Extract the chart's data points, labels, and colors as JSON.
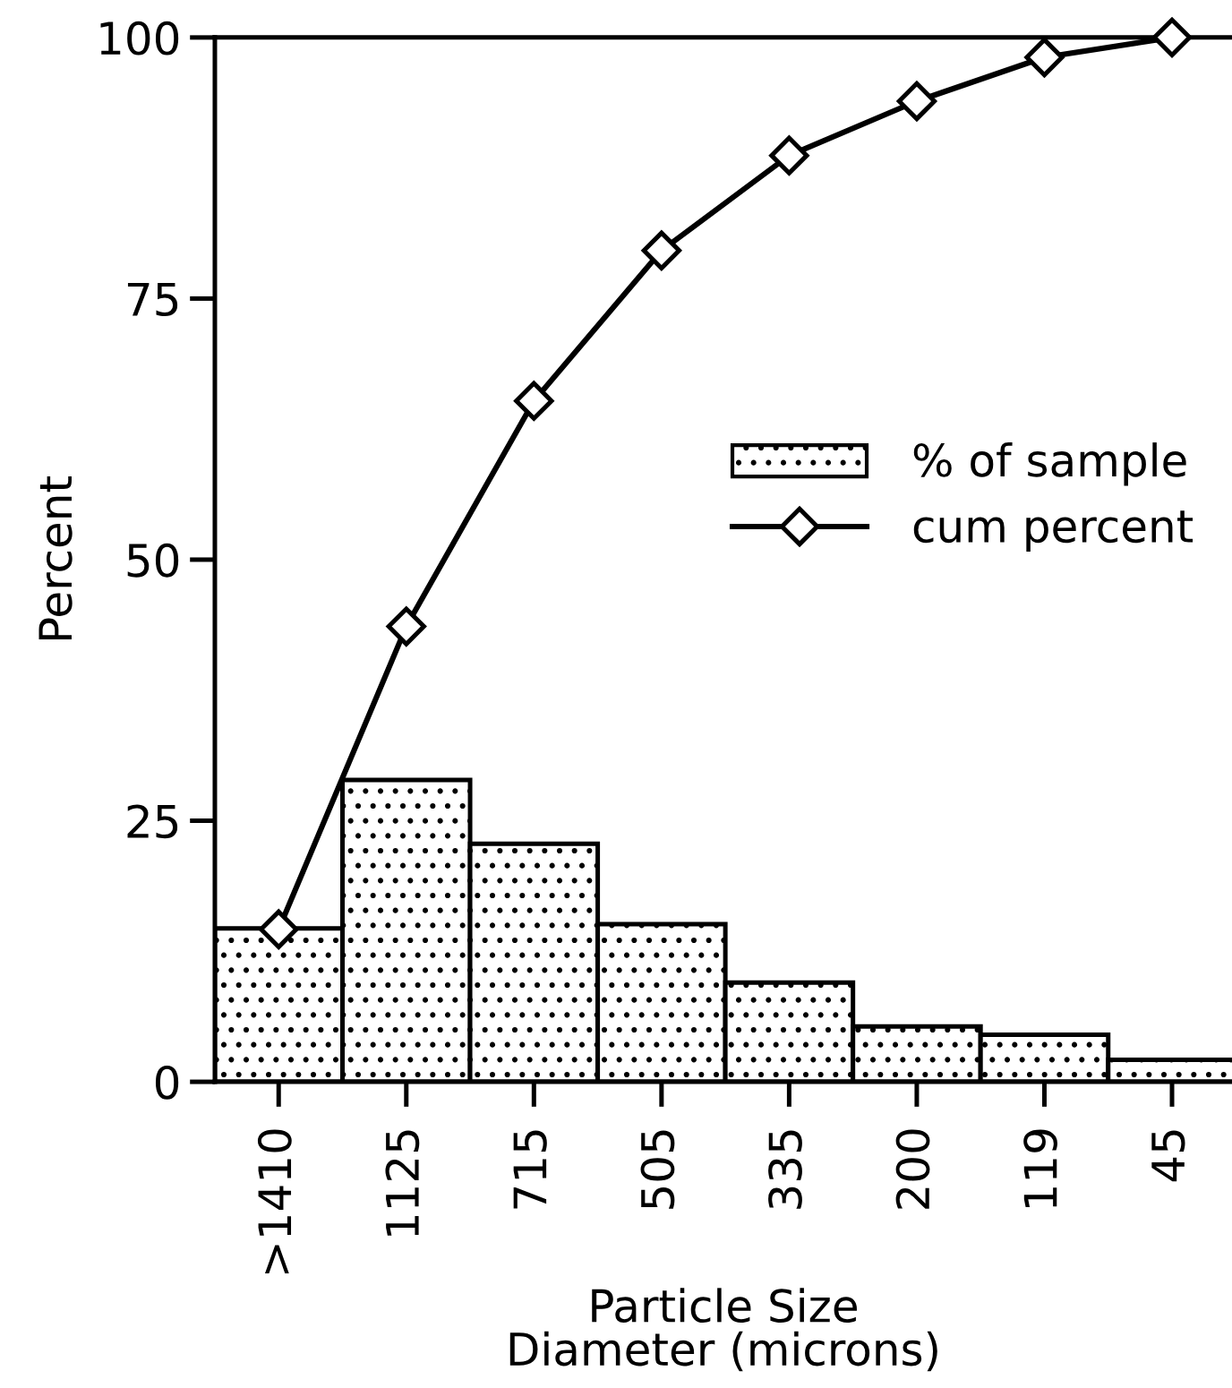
{
  "chart_data": {
    "type": "bar",
    "xlabel": "Particle Size\nDiameter (microns)",
    "ylabel": "Percent",
    "categories": [
      ">1410",
      "1125",
      "715",
      "505",
      "335",
      "200",
      "119",
      "45"
    ],
    "series": [
      {
        "name": "% of sample",
        "color": "#000000",
        "values": [
          14.7,
          28.9,
          22.8,
          15.1,
          9.5,
          5.3,
          4.5,
          2.1
        ]
      },
      {
        "name": "cum percent",
        "type": "line",
        "color": "#000000",
        "values": [
          14.6,
          43.6,
          65.2,
          79.6,
          88.7,
          93.9,
          98.1,
          100
        ]
      }
    ],
    "ylim": [
      0,
      100
    ],
    "yticks": [
      0,
      25,
      50,
      75,
      100
    ],
    "grid": false,
    "legend": "right",
    "marker": "diamond",
    "line_style": "solid"
  }
}
